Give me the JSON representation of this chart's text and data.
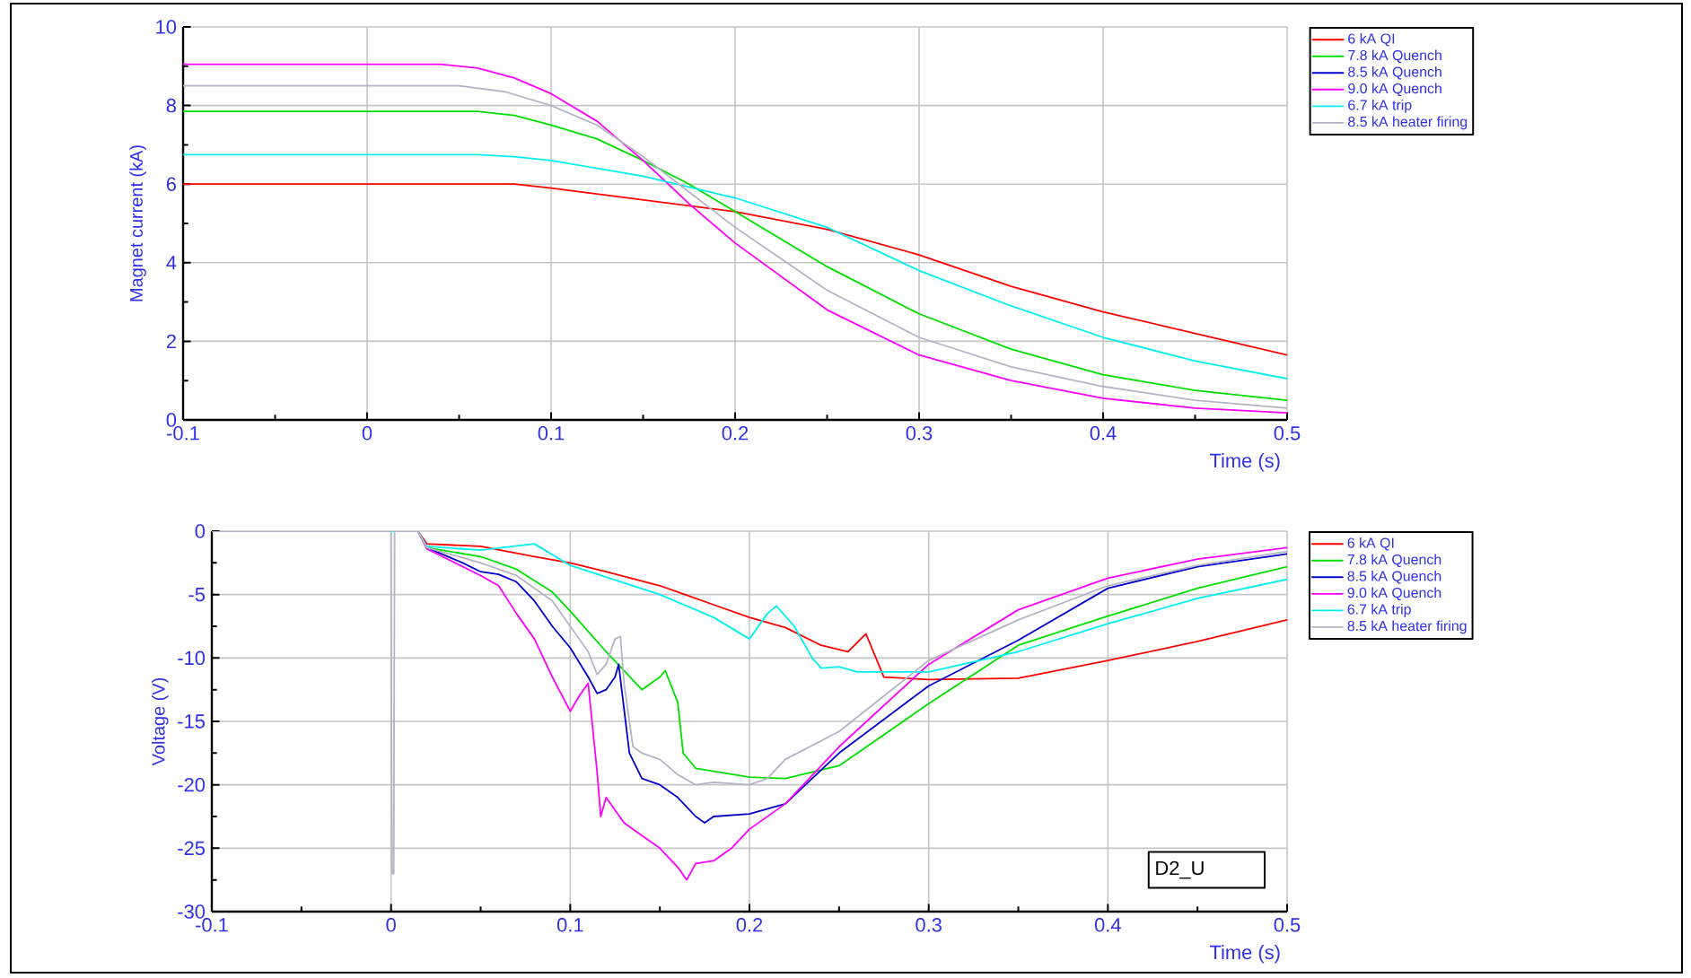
{
  "chart_data": [
    {
      "type": "line",
      "xlabel": "Time (s)",
      "ylabel": "Magnet current (kA)",
      "xlim": [
        -0.1,
        0.5
      ],
      "ylim": [
        0,
        10
      ],
      "xticks": [
        -0.1,
        0,
        0.1,
        0.2,
        0.3,
        0.4,
        0.5
      ],
      "yticks": [
        0,
        2,
        4,
        6,
        8,
        10
      ],
      "grid": true,
      "legend": "top right",
      "series": [
        {
          "name": "6 kA QI",
          "color": "#ff0000",
          "x": [
            -0.1,
            0,
            0.08,
            0.1,
            0.15,
            0.2,
            0.25,
            0.3,
            0.35,
            0.4,
            0.45,
            0.5
          ],
          "values": [
            6.0,
            6.0,
            6.0,
            5.9,
            5.6,
            5.3,
            4.85,
            4.2,
            3.4,
            2.75,
            2.2,
            1.65
          ]
        },
        {
          "name": "7.8 kA Quench",
          "color": "#00e000",
          "x": [
            -0.1,
            0,
            0.06,
            0.08,
            0.1,
            0.125,
            0.15,
            0.175,
            0.2,
            0.25,
            0.3,
            0.35,
            0.4,
            0.45,
            0.5
          ],
          "values": [
            7.85,
            7.85,
            7.85,
            7.75,
            7.5,
            7.15,
            6.6,
            6.0,
            5.3,
            3.9,
            2.7,
            1.8,
            1.15,
            0.75,
            0.5
          ]
        },
        {
          "name": "8.5 kA Quench",
          "color": "#0000cc"
        },
        {
          "name": "9.0 kA Quench",
          "color": "#ff00ff",
          "x": [
            -0.1,
            0,
            0.04,
            0.06,
            0.08,
            0.1,
            0.125,
            0.15,
            0.175,
            0.2,
            0.25,
            0.3,
            0.35,
            0.4,
            0.45,
            0.5
          ],
          "values": [
            9.05,
            9.05,
            9.05,
            8.95,
            8.7,
            8.3,
            7.6,
            6.6,
            5.5,
            4.5,
            2.8,
            1.65,
            1.0,
            0.55,
            0.3,
            0.18
          ]
        },
        {
          "name": "6.7 kA trip",
          "color": "#00f0f0",
          "x": [
            -0.1,
            0,
            0.06,
            0.08,
            0.1,
            0.15,
            0.2,
            0.25,
            0.3,
            0.35,
            0.4,
            0.45,
            0.5
          ],
          "values": [
            6.75,
            6.75,
            6.75,
            6.7,
            6.6,
            6.2,
            5.65,
            4.9,
            3.8,
            2.9,
            2.1,
            1.5,
            1.05
          ]
        },
        {
          "name": "8.5 kA heater firing",
          "color": "#b4b4c4",
          "x": [
            -0.1,
            0,
            0.05,
            0.075,
            0.1,
            0.125,
            0.15,
            0.175,
            0.2,
            0.25,
            0.3,
            0.35,
            0.4,
            0.45,
            0.5
          ],
          "values": [
            8.5,
            8.5,
            8.5,
            8.35,
            8.0,
            7.5,
            6.7,
            5.8,
            4.9,
            3.3,
            2.1,
            1.35,
            0.85,
            0.5,
            0.3
          ]
        }
      ]
    },
    {
      "type": "line",
      "xlabel": "Time (s)",
      "ylabel": "Voltage (V)",
      "xlim": [
        -0.1,
        0.5
      ],
      "ylim": [
        -30,
        0
      ],
      "xticks": [
        -0.1,
        0,
        0.1,
        0.2,
        0.3,
        0.4,
        0.5
      ],
      "yticks": [
        -30,
        -25,
        -20,
        -15,
        -10,
        -5,
        0
      ],
      "grid": true,
      "legend": "top right",
      "annotations": [
        "D2_U"
      ],
      "series": [
        {
          "name": "6 kA QI",
          "color": "#ff0000",
          "x": [
            -0.1,
            0.015,
            0.02,
            0.05,
            0.08,
            0.1,
            0.12,
            0.15,
            0.18,
            0.2,
            0.22,
            0.24,
            0.255,
            0.265,
            0.275,
            0.3,
            0.35,
            0.4,
            0.45,
            0.5
          ],
          "values": [
            0,
            0,
            -1.0,
            -1.2,
            -2.0,
            -2.5,
            -3.2,
            -4.3,
            -5.8,
            -6.8,
            -7.6,
            -9.0,
            -9.5,
            -8.1,
            -11.5,
            -11.7,
            -11.6,
            -10.2,
            -8.7,
            -7.0
          ]
        },
        {
          "name": "7.8 kA Quench",
          "color": "#00e000",
          "x": [
            -0.1,
            0.015,
            0.02,
            0.05,
            0.07,
            0.09,
            0.1,
            0.12,
            0.13,
            0.14,
            0.15,
            0.153,
            0.16,
            0.163,
            0.17,
            0.2,
            0.22,
            0.25,
            0.3,
            0.35,
            0.4,
            0.45,
            0.5
          ],
          "values": [
            0,
            0,
            -1.3,
            -2.0,
            -3.0,
            -4.8,
            -6.3,
            -9.5,
            -11.0,
            -12.5,
            -11.5,
            -11.0,
            -13.5,
            -17.5,
            -18.7,
            -19.4,
            -19.5,
            -18.5,
            -13.6,
            -9.0,
            -6.7,
            -4.5,
            -2.8
          ]
        },
        {
          "name": "8.5 kA Quench",
          "color": "#0000cc",
          "x": [
            -0.1,
            0.015,
            0.02,
            0.04,
            0.05,
            0.06,
            0.07,
            0.08,
            0.09,
            0.1,
            0.11,
            0.115,
            0.12,
            0.125,
            0.127,
            0.13,
            0.133,
            0.14,
            0.15,
            0.16,
            0.17,
            0.175,
            0.18,
            0.2,
            0.22,
            0.25,
            0.3,
            0.35,
            0.4,
            0.45,
            0.5
          ],
          "values": [
            0,
            0,
            -1.3,
            -2.5,
            -3.2,
            -3.4,
            -4.0,
            -5.5,
            -7.5,
            -9.2,
            -11.5,
            -12.8,
            -12.5,
            -11.5,
            -10.5,
            -14.0,
            -17.5,
            -19.5,
            -20.0,
            -21.0,
            -22.5,
            -23.0,
            -22.5,
            -22.3,
            -21.5,
            -17.5,
            -12.2,
            -8.6,
            -4.5,
            -2.8,
            -1.8
          ]
        },
        {
          "name": "9.0 kA Quench",
          "color": "#ff00ff",
          "x": [
            -0.1,
            0.015,
            0.02,
            0.05,
            0.06,
            0.07,
            0.08,
            0.09,
            0.1,
            0.105,
            0.11,
            0.115,
            0.117,
            0.12,
            0.13,
            0.14,
            0.15,
            0.16,
            0.165,
            0.17,
            0.18,
            0.19,
            0.2,
            0.22,
            0.25,
            0.3,
            0.35,
            0.4,
            0.45,
            0.5
          ],
          "values": [
            0,
            0,
            -1.4,
            -3.5,
            -4.3,
            -6.5,
            -8.5,
            -11.5,
            -14.2,
            -13.0,
            -12.0,
            -19.0,
            -22.5,
            -21.0,
            -23.0,
            -24.0,
            -25.0,
            -26.5,
            -27.5,
            -26.2,
            -26.0,
            -25.0,
            -23.5,
            -21.5,
            -17.0,
            -10.5,
            -6.2,
            -3.7,
            -2.2,
            -1.3
          ]
        },
        {
          "name": "6.7 kA trip",
          "color": "#00f0f0",
          "x": [
            -0.1,
            0.015,
            0.02,
            0.05,
            0.08,
            0.1,
            0.15,
            0.18,
            0.2,
            0.21,
            0.215,
            0.225,
            0.235,
            0.24,
            0.25,
            0.26,
            0.3,
            0.35,
            0.4,
            0.45,
            0.5
          ],
          "values": [
            0,
            0,
            -1.2,
            -1.5,
            -1.0,
            -2.7,
            -5.0,
            -6.8,
            -8.5,
            -6.5,
            -5.9,
            -7.5,
            -10.0,
            -10.8,
            -10.7,
            -11.1,
            -11.1,
            -9.5,
            -7.3,
            -5.3,
            -3.8
          ]
        },
        {
          "name": "8.5 kA heater firing",
          "color": "#b4b4c4",
          "x": [
            -0.1,
            0,
            0.0005,
            0.0015,
            0.002,
            0.015,
            0.02,
            0.05,
            0.07,
            0.09,
            0.1,
            0.11,
            0.115,
            0.12,
            0.125,
            0.128,
            0.13,
            0.135,
            0.14,
            0.15,
            0.16,
            0.17,
            0.18,
            0.2,
            0.21,
            0.22,
            0.25,
            0.3,
            0.35,
            0.4,
            0.45,
            0.5
          ],
          "values": [
            0,
            0,
            -27,
            -27,
            0,
            0,
            -1.3,
            -2.5,
            -3.5,
            -5.5,
            -7.5,
            -9.5,
            -11.3,
            -10.5,
            -8.5,
            -8.3,
            -12.0,
            -17.0,
            -17.5,
            -18.0,
            -19.2,
            -20.0,
            -19.8,
            -20.0,
            -19.5,
            -18.0,
            -15.8,
            -10.2,
            -7.0,
            -4.3,
            -2.7,
            -1.6
          ]
        }
      ]
    }
  ]
}
